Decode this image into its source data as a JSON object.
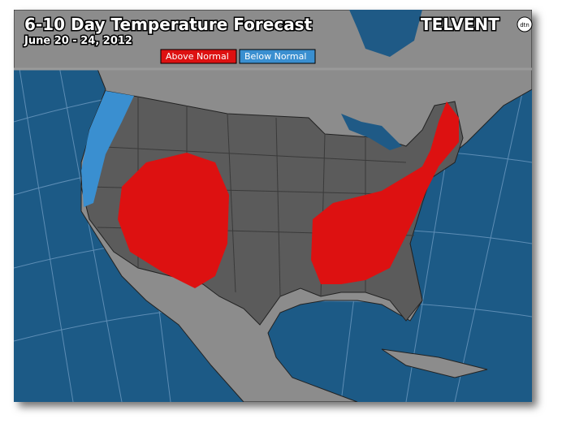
{
  "header": {
    "title": "6-10 Day Temperature Forecast",
    "subtitle": "June 20 - 24, 2012",
    "logo": "TELVENT",
    "logo_badge": "dtn"
  },
  "legend": [
    {
      "label": "Above Normal",
      "color": "#dd1111"
    },
    {
      "label": "Below Normal",
      "color": "#3a8fd0"
    }
  ]
}
